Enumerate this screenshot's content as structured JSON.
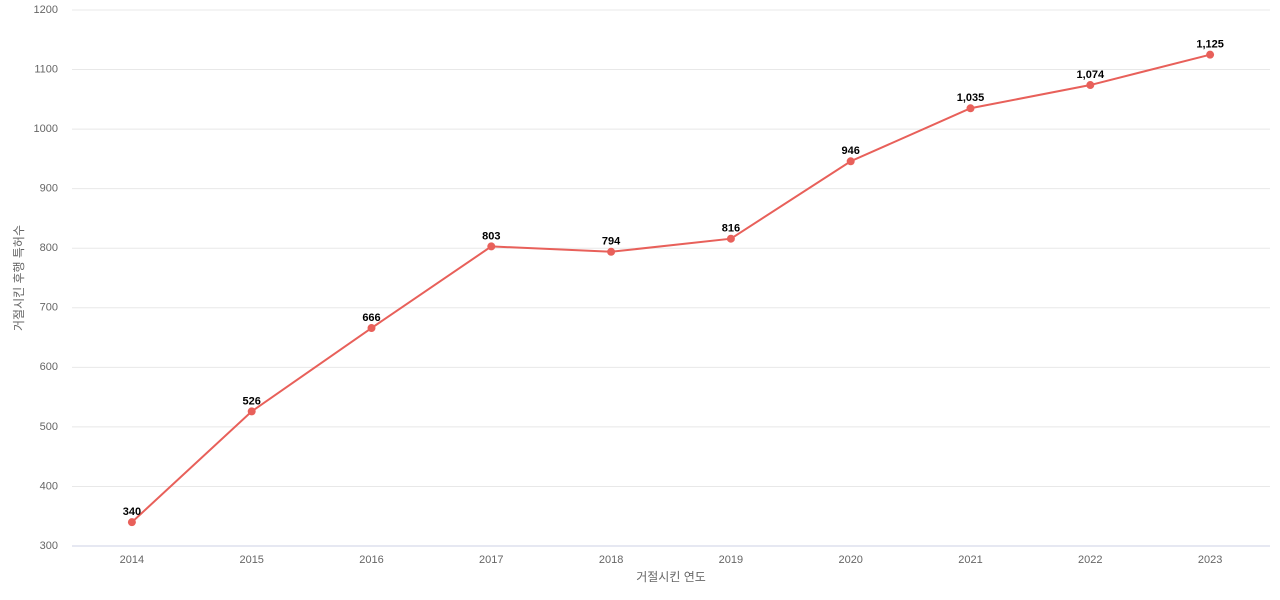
{
  "chart_data": {
    "type": "line",
    "x_label": "거절시킨 연도",
    "y_label": "거절시킨 후행 특허수",
    "categories": [
      "2014",
      "2015",
      "2016",
      "2017",
      "2018",
      "2019",
      "2020",
      "2021",
      "2022",
      "2023"
    ],
    "values": [
      340,
      526,
      666,
      803,
      794,
      816,
      946,
      1035,
      1074,
      1125
    ],
    "value_labels": [
      "340",
      "526",
      "666",
      "803",
      "794",
      "816",
      "946",
      "1,035",
      "1,074",
      "1,125"
    ],
    "color": "#e8605a",
    "ylim": [
      300,
      1200
    ],
    "yticks": [
      300,
      400,
      500,
      600,
      700,
      800,
      900,
      1000,
      1100,
      1200
    ],
    "grid": true
  }
}
